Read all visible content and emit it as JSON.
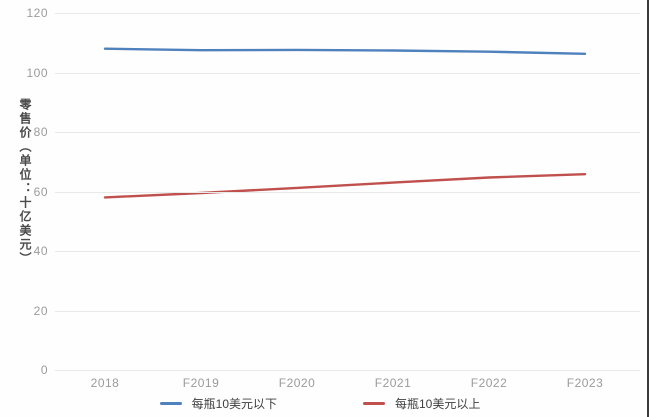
{
  "chart_data": {
    "type": "line",
    "title": "",
    "xlabel": "",
    "ylabel": "零售价（单位：十亿美元）",
    "categories": [
      "2018",
      "F2019",
      "F2020",
      "F2021",
      "F2022",
      "F2023"
    ],
    "series": [
      {
        "id": "blue",
        "name": "每瓶10美元以下",
        "color": "#4f81bd",
        "values": [
          108,
          107.5,
          107.6,
          107.4,
          107,
          106.3
        ]
      },
      {
        "id": "red",
        "name": "每瓶10美元以上",
        "color": "#c0504d",
        "values": [
          58,
          59.5,
          61.2,
          63,
          64.7,
          65.8
        ]
      }
    ],
    "ylim": [
      0,
      120
    ],
    "y_ticks": [
      0,
      20,
      40,
      60,
      80,
      100,
      120
    ],
    "grid": "horizontal",
    "legend_position": "bottom"
  }
}
